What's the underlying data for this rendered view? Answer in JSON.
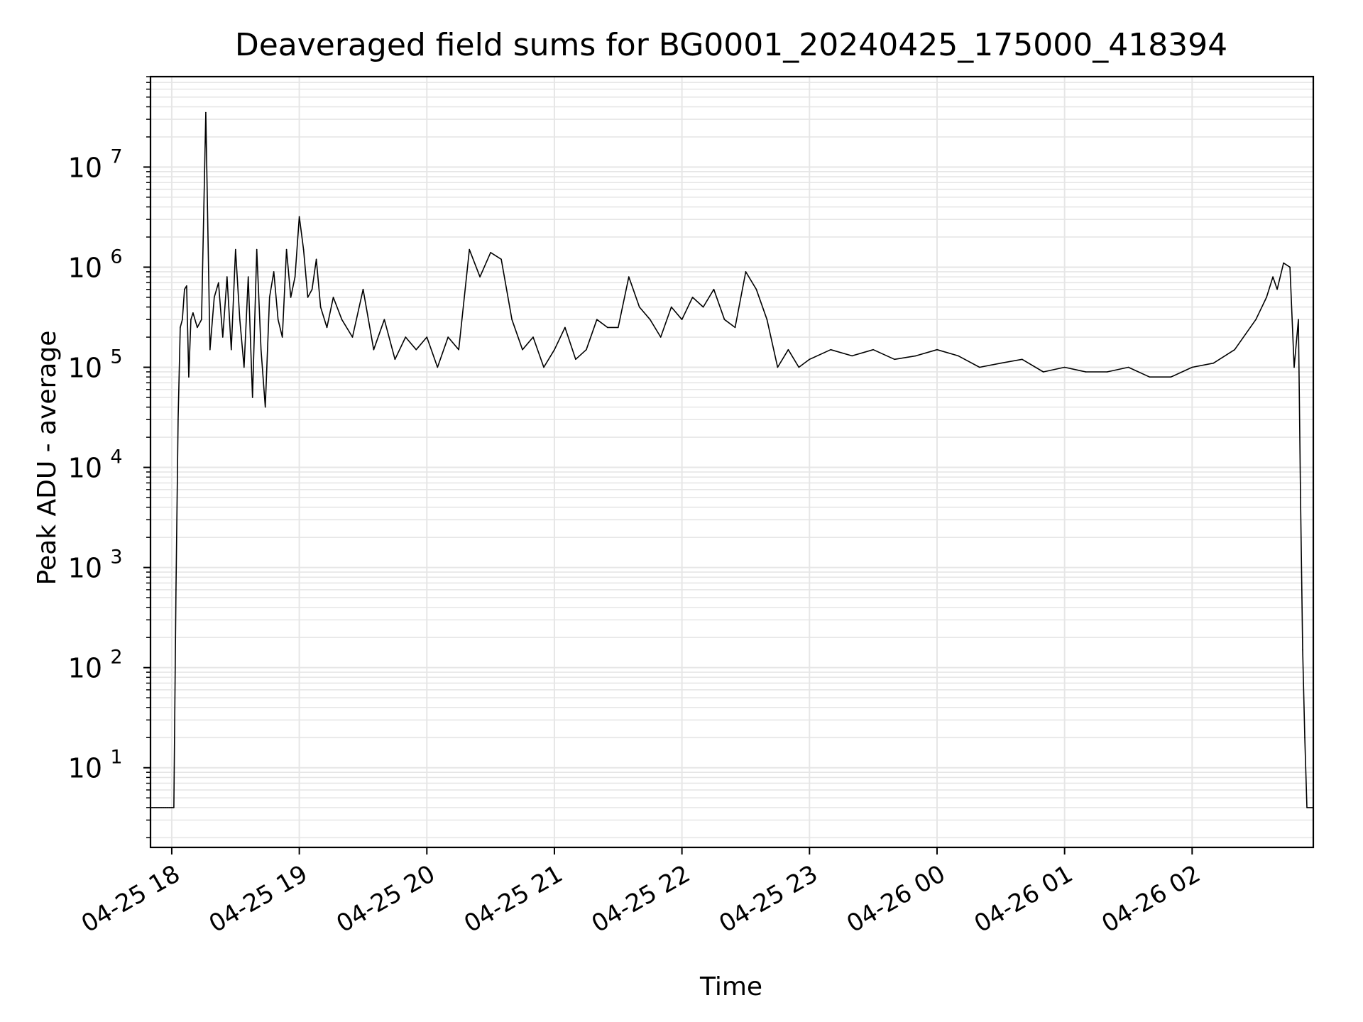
{
  "chart_data": {
    "type": "line",
    "title": "Deaveraged field sums for BG0001_20240425_175000_418394",
    "xlabel": "Time",
    "ylabel": "Peak ADU - average",
    "yscale": "log",
    "ylim": [
      1.6,
      80000000
    ],
    "xlim": [
      "2024-04-25 17:50",
      "2024-04-26 02:57"
    ],
    "grid": true,
    "line_color": "#000000",
    "grid_color": "#e6e6e6",
    "x_ticks": [
      {
        "t": "2024-04-25 18:00",
        "label": "04-25 18"
      },
      {
        "t": "2024-04-25 19:00",
        "label": "04-25 19"
      },
      {
        "t": "2024-04-25 20:00",
        "label": "04-25 20"
      },
      {
        "t": "2024-04-25 21:00",
        "label": "04-25 21"
      },
      {
        "t": "2024-04-25 22:00",
        "label": "04-25 22"
      },
      {
        "t": "2024-04-25 23:00",
        "label": "04-25 23"
      },
      {
        "t": "2024-04-26 00:00",
        "label": "04-26 00"
      },
      {
        "t": "2024-04-26 01:00",
        "label": "04-26 01"
      },
      {
        "t": "2024-04-26 02:00",
        "label": "04-26 02"
      }
    ],
    "y_ticks": [
      {
        "value": 10,
        "base": "10",
        "exp": "1"
      },
      {
        "value": 100,
        "base": "10",
        "exp": "2"
      },
      {
        "value": 1000,
        "base": "10",
        "exp": "3"
      },
      {
        "value": 10000,
        "base": "10",
        "exp": "4"
      },
      {
        "value": 100000,
        "base": "10",
        "exp": "5"
      },
      {
        "value": 1000000,
        "base": "10",
        "exp": "6"
      },
      {
        "value": 10000000,
        "base": "10",
        "exp": "7"
      }
    ],
    "series": [
      {
        "x": [
          "2024-04-25 17:50",
          "2024-04-25 17:51",
          "2024-04-25 17:52",
          "2024-04-25 17:53",
          "2024-04-25 17:54",
          "2024-04-25 17:55",
          "2024-04-25 17:56",
          "2024-04-25 17:57",
          "2024-04-25 17:58",
          "2024-04-25 17:59",
          "2024-04-25 18:00",
          "2024-04-25 18:01",
          "2024-04-25 18:02",
          "2024-04-25 18:03",
          "2024-04-25 18:04",
          "2024-04-25 18:05",
          "2024-04-25 18:06",
          "2024-04-25 18:07",
          "2024-04-25 18:08",
          "2024-04-25 18:09",
          "2024-04-25 18:10",
          "2024-04-25 18:12",
          "2024-04-25 18:14",
          "2024-04-25 18:16",
          "2024-04-25 18:18",
          "2024-04-25 18:20",
          "2024-04-25 18:22",
          "2024-04-25 18:24",
          "2024-04-25 18:26",
          "2024-04-25 18:28",
          "2024-04-25 18:30",
          "2024-04-25 18:32",
          "2024-04-25 18:34",
          "2024-04-25 18:36",
          "2024-04-25 18:38",
          "2024-04-25 18:40",
          "2024-04-25 18:42",
          "2024-04-25 18:44",
          "2024-04-25 18:46",
          "2024-04-25 18:48",
          "2024-04-25 18:50",
          "2024-04-25 18:52",
          "2024-04-25 18:54",
          "2024-04-25 18:56",
          "2024-04-25 18:58",
          "2024-04-25 19:00",
          "2024-04-25 19:02",
          "2024-04-25 19:04",
          "2024-04-25 19:06",
          "2024-04-25 19:08",
          "2024-04-25 19:10",
          "2024-04-25 19:13",
          "2024-04-25 19:16",
          "2024-04-25 19:20",
          "2024-04-25 19:25",
          "2024-04-25 19:30",
          "2024-04-25 19:35",
          "2024-04-25 19:40",
          "2024-04-25 19:45",
          "2024-04-25 19:50",
          "2024-04-25 19:55",
          "2024-04-25 20:00",
          "2024-04-25 20:05",
          "2024-04-25 20:10",
          "2024-04-25 20:15",
          "2024-04-25 20:20",
          "2024-04-25 20:25",
          "2024-04-25 20:30",
          "2024-04-25 20:35",
          "2024-04-25 20:40",
          "2024-04-25 20:45",
          "2024-04-25 20:50",
          "2024-04-25 20:55",
          "2024-04-25 21:00",
          "2024-04-25 21:05",
          "2024-04-25 21:10",
          "2024-04-25 21:15",
          "2024-04-25 21:20",
          "2024-04-25 21:25",
          "2024-04-25 21:30",
          "2024-04-25 21:35",
          "2024-04-25 21:40",
          "2024-04-25 21:45",
          "2024-04-25 21:50",
          "2024-04-25 21:55",
          "2024-04-25 22:00",
          "2024-04-25 22:05",
          "2024-04-25 22:10",
          "2024-04-25 22:15",
          "2024-04-25 22:20",
          "2024-04-25 22:25",
          "2024-04-25 22:30",
          "2024-04-25 22:35",
          "2024-04-25 22:40",
          "2024-04-25 22:45",
          "2024-04-25 22:50",
          "2024-04-25 22:55",
          "2024-04-25 23:00",
          "2024-04-25 23:10",
          "2024-04-25 23:20",
          "2024-04-25 23:30",
          "2024-04-25 23:40",
          "2024-04-25 23:50",
          "2024-04-26 00:00",
          "2024-04-26 00:10",
          "2024-04-26 00:20",
          "2024-04-26 00:30",
          "2024-04-26 00:40",
          "2024-04-26 00:50",
          "2024-04-26 01:00",
          "2024-04-26 01:10",
          "2024-04-26 01:20",
          "2024-04-26 01:30",
          "2024-04-26 01:40",
          "2024-04-26 01:50",
          "2024-04-26 02:00",
          "2024-04-26 02:10",
          "2024-04-26 02:20",
          "2024-04-26 02:30",
          "2024-04-26 02:35",
          "2024-04-26 02:38",
          "2024-04-26 02:40",
          "2024-04-26 02:43",
          "2024-04-26 02:46",
          "2024-04-26 02:48",
          "2024-04-26 02:50",
          "2024-04-26 02:51",
          "2024-04-26 02:52",
          "2024-04-26 02:53",
          "2024-04-26 02:54",
          "2024-04-26 02:57"
        ],
        "y": [
          4,
          4,
          4,
          4,
          4,
          4,
          4,
          4,
          4,
          4,
          4,
          4,
          600,
          30000,
          250000,
          300000,
          600000,
          650000,
          80000,
          300000,
          350000,
          250000,
          300000,
          35000000,
          150000,
          500000,
          700000,
          200000,
          800000,
          150000,
          1500000,
          300000,
          100000,
          800000,
          50000,
          1500000,
          150000,
          40000,
          500000,
          900000,
          300000,
          200000,
          1500000,
          500000,
          800000,
          3200000,
          1500000,
          500000,
          600000,
          1200000,
          400000,
          250000,
          500000,
          300000,
          200000,
          600000,
          150000,
          300000,
          120000,
          200000,
          150000,
          200000,
          100000,
          200000,
          150000,
          1500000,
          800000,
          1400000,
          1200000,
          300000,
          150000,
          200000,
          100000,
          150000,
          250000,
          120000,
          150000,
          300000,
          250000,
          250000,
          800000,
          400000,
          300000,
          200000,
          400000,
          300000,
          500000,
          400000,
          600000,
          300000,
          250000,
          900000,
          600000,
          300000,
          100000,
          150000,
          100000,
          120000,
          150000,
          130000,
          150000,
          120000,
          130000,
          150000,
          130000,
          100000,
          110000,
          120000,
          90000,
          100000,
          90000,
          90000,
          100000,
          80000,
          80000,
          100000,
          110000,
          150000,
          300000,
          500000,
          800000,
          600000,
          1100000,
          1000000,
          100000,
          300000,
          5000,
          150,
          20,
          4,
          4
        ]
      }
    ]
  }
}
